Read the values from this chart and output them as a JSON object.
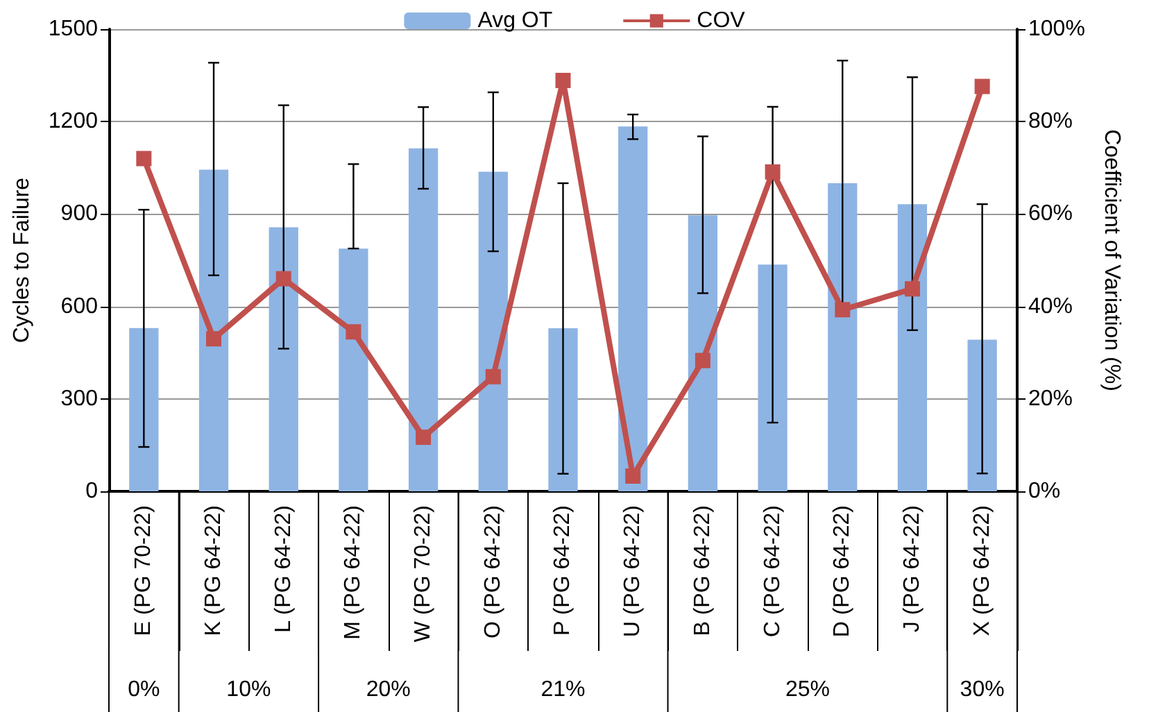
{
  "chart_data": {
    "type": "bar",
    "categories": [
      "E (PG 70-22)",
      "K (PG 64-22)",
      "L (PG 64-22)",
      "M (PG 64-22)",
      "W (PG 70-22)",
      "O (PG 64-22)",
      "P (PG 64-22)",
      "U (PG 64-22)",
      "B (PG 64-22)",
      "C (PG 64-22)",
      "D (PG 64-22)",
      "J (PG 64-22)",
      "X (PG 64-22)"
    ],
    "series": [
      {
        "name": "Avg OT",
        "color": "#8eb4e3",
        "values": [
          530,
          1044,
          857,
          788,
          1113,
          1037,
          529,
          1184,
          896,
          736,
          1000,
          932,
          492
        ],
        "errors": [
          [
            144,
            914
          ],
          [
            701,
            1391
          ],
          [
            463,
            1253
          ],
          [
            788,
            1062
          ],
          [
            982,
            1247
          ],
          [
            779,
            1295
          ],
          [
            57,
            1000
          ],
          [
            1143,
            1223
          ],
          [
            643,
            1152
          ],
          [
            223,
            1248
          ],
          [
            602,
            1398
          ],
          [
            523,
            1344
          ],
          [
            58,
            932
          ]
        ]
      },
      {
        "name": "COV",
        "type": "line",
        "axis": "y2",
        "color": "#c0504d",
        "marker": "square",
        "values": [
          72,
          33,
          46,
          34.5,
          11.7,
          24.8,
          88.9,
          3.3,
          28.3,
          69.1,
          39.3,
          43.8,
          87.6
        ]
      }
    ],
    "ylabel": "Cycles to Failure",
    "y2label": "Coefficient of Variation (%)",
    "ylim": [
      0,
      1500
    ],
    "yticks": [
      0,
      300,
      600,
      900,
      1200,
      1500
    ],
    "y2lim": [
      0,
      100
    ],
    "y2ticks": [
      {
        "value": 0,
        "label": "0%"
      },
      {
        "value": 20,
        "label": "20%"
      },
      {
        "value": 40,
        "label": "40%"
      },
      {
        "value": 60,
        "label": "60%"
      },
      {
        "value": 80,
        "label": "80%"
      },
      {
        "value": 100,
        "label": "100%"
      }
    ],
    "annotations": [
      "0%",
      "10%",
      "20%",
      "21%",
      "25%",
      "30%"
    ],
    "grid": "y",
    "legend": "top"
  }
}
